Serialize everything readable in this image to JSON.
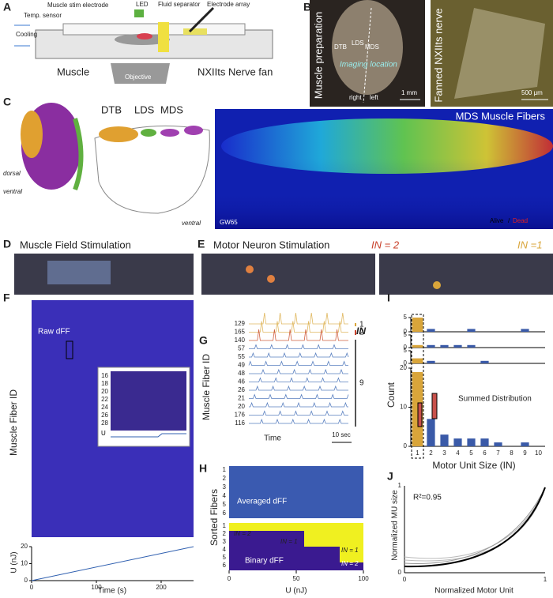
{
  "panels": {
    "A": {
      "letter": "A",
      "labels": [
        "Muscle stim electrode",
        "LED",
        "Fluid separator",
        "Electrode array",
        "Temp. sensor",
        "Cooling",
        "Muscle",
        "Objective",
        "NXIIts Nerve fan"
      ]
    },
    "B": {
      "letter": "B",
      "left_title": "Muscle preparation",
      "regions": [
        "DTB",
        "LDS",
        "MDS"
      ],
      "imaging": "Imaging location",
      "right": "right",
      "left": "left",
      "scale_left": "1 mm",
      "right_title": "Fanned NXIIts nerve",
      "scale_right": "500 μm"
    },
    "C": {
      "letter": "C",
      "dorsal": "dorsal",
      "ventral": "ventral",
      "regions": [
        "DTB",
        "LDS",
        "MDS"
      ],
      "section_ventral": "ventral",
      "map_title": "MDS Muscle Fibers",
      "animal": "GW65",
      "alive": "Alive",
      "sep": "/",
      "dead": "Dead"
    },
    "D": {
      "letter": "D",
      "title": "Muscle Field Stimulation"
    },
    "E": {
      "letter": "E",
      "title": "Motor Neuron Stimulation",
      "in2": "IN = 2",
      "in1": "IN =1"
    },
    "F": {
      "letter": "F",
      "inset_title": "Raw dFF",
      "ylabel": "Muscle Fiber ID",
      "inset_yticks": [
        16,
        18,
        20,
        22,
        24,
        26,
        28
      ],
      "inset_u": "U",
      "u_chart": {
        "type": "line",
        "ylabel": "U (nJ)",
        "xlabel": "Time (s)",
        "xlim": [
          0,
          250
        ],
        "ylim": [
          0,
          20
        ],
        "xticks": [
          0,
          100,
          200
        ],
        "yticks": [
          0,
          10,
          20
        ],
        "x": [
          0,
          250
        ],
        "values": [
          0,
          20
        ],
        "color": "#3060b0"
      }
    },
    "G": {
      "letter": "G",
      "in_header": "IN",
      "fiber_ids": [
        129,
        165,
        140,
        57,
        55,
        49,
        48,
        46,
        26,
        21,
        20,
        176,
        116
      ],
      "in_groups": [
        "1",
        "2",
        "9"
      ],
      "ylabel": "Muscle Fiber ID",
      "xlabel": "Time",
      "scale": "10 sec"
    },
    "H": {
      "letter": "H",
      "ylabel": "Sorted Fibers",
      "row_ticks": [
        1,
        2,
        3,
        4,
        5,
        6
      ],
      "avg_label": "Averaged dFF",
      "bin_label": "Binary dFF",
      "bin_tags": [
        "IN = 2",
        "IN = 1",
        "IN = 1",
        "IN = 2"
      ],
      "xlabel": "U (nJ)",
      "xlim": [
        0,
        100
      ],
      "xticks": [
        0,
        50,
        100
      ]
    },
    "I": {
      "letter": "I",
      "type": "bar",
      "ylabel": "Count",
      "xlabel": "Motor Unit Size (IN)",
      "summed_label": "Summed Distribution",
      "xticks": [
        1,
        2,
        3,
        4,
        5,
        6,
        7,
        8,
        9,
        10
      ],
      "colors": [
        "#d9a53a",
        "#3a5aa8"
      ],
      "rows": [
        {
          "ylim": [
            0,
            5
          ],
          "yticks": [
            0,
            5
          ],
          "values": [
            5,
            1,
            0,
            0,
            1,
            0,
            0,
            0,
            1,
            0
          ]
        },
        {
          "ylim": [
            0,
            5
          ],
          "yticks": [
            0,
            5
          ],
          "values": [
            1,
            1,
            1,
            1,
            1,
            0,
            0,
            0,
            0,
            0
          ]
        },
        {
          "ylim": [
            0,
            5
          ],
          "yticks": [
            0,
            5
          ],
          "values": [
            2,
            1,
            0,
            0,
            0,
            1,
            0,
            0,
            0,
            0
          ]
        },
        {
          "ylim": [
            0,
            20
          ],
          "yticks": [
            0,
            10,
            20
          ],
          "values": [
            19,
            7,
            3,
            2,
            2,
            2,
            1,
            0,
            1,
            0
          ]
        }
      ]
    },
    "J": {
      "letter": "J",
      "r2": "R²=0.95",
      "ylabel": "Normalized MU size",
      "xlabel": "Normalized Motor Unit",
      "xticks": [
        0,
        1
      ],
      "yticks": [
        0,
        1
      ]
    }
  }
}
